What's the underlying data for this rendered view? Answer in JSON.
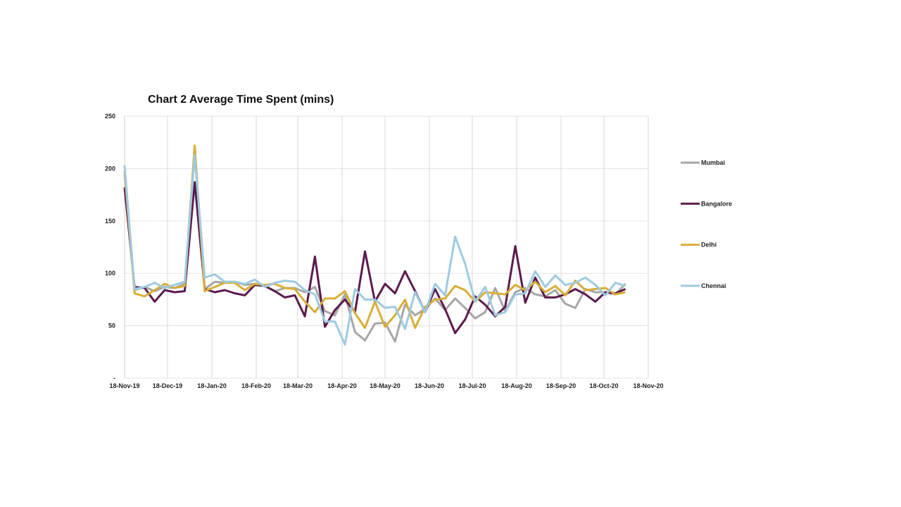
{
  "chart_data": {
    "type": "line",
    "title": "Chart 2 Average Time Spent (mins)",
    "xlabel": "",
    "ylabel": "",
    "ylim": [
      0,
      250
    ],
    "yticks": [
      0,
      50,
      100,
      150,
      200,
      250
    ],
    "ytick_labels": [
      "-",
      "50",
      "100",
      "150",
      "200",
      "250"
    ],
    "xlim": [
      "2019-11-18",
      "2020-11-18"
    ],
    "xticks": [
      "2019-11-18",
      "2019-12-18",
      "2020-01-18",
      "2020-02-18",
      "2020-03-18",
      "2020-04-18",
      "2020-05-18",
      "2020-06-18",
      "2020-07-18",
      "2020-08-18",
      "2020-09-18",
      "2020-10-18",
      "2020-11-18"
    ],
    "xtick_labels": [
      "18-Nov-19",
      "18-Dec-19",
      "18-Jan-20",
      "18-Feb-20",
      "18-Mar-20",
      "18-Apr-20",
      "18-May-20",
      "18-Jun-20",
      "18-Jul-20",
      "18-Aug-20",
      "18-Sep-20",
      "18-Oct-20",
      "18-Nov-20"
    ],
    "grid": true,
    "legend_position": "right",
    "x": [
      "2019-11-18",
      "2019-11-25",
      "2019-12-02",
      "2019-12-09",
      "2019-12-16",
      "2019-12-23",
      "2019-12-30",
      "2020-01-06",
      "2020-01-13",
      "2020-01-20",
      "2020-01-27",
      "2020-02-03",
      "2020-02-10",
      "2020-02-17",
      "2020-02-24",
      "2020-03-02",
      "2020-03-09",
      "2020-03-16",
      "2020-03-23",
      "2020-03-30",
      "2020-04-06",
      "2020-04-13",
      "2020-04-20",
      "2020-04-27",
      "2020-05-04",
      "2020-05-11",
      "2020-05-18",
      "2020-05-25",
      "2020-06-01",
      "2020-06-08",
      "2020-06-15",
      "2020-06-22",
      "2020-06-29",
      "2020-07-06",
      "2020-07-13",
      "2020-07-20",
      "2020-07-27",
      "2020-08-03",
      "2020-08-10",
      "2020-08-17",
      "2020-08-24",
      "2020-08-31",
      "2020-09-07",
      "2020-09-14",
      "2020-09-21",
      "2020-09-28",
      "2020-10-05",
      "2020-10-12",
      "2020-10-19",
      "2020-10-26",
      "2020-11-02"
    ],
    "series": [
      {
        "name": "Mumbai",
        "color": "#a6a6a6",
        "values": [
          195,
          84,
          87,
          83,
          87,
          86,
          90,
          215,
          85,
          92,
          91,
          92,
          89,
          90,
          88,
          83,
          86,
          86,
          82,
          87,
          64,
          60,
          80,
          44,
          36,
          52,
          53,
          35,
          70,
          60,
          66,
          76,
          65,
          76,
          67,
          57,
          63,
          86,
          64,
          82,
          86,
          80,
          78,
          84,
          71,
          67,
          85,
          82,
          82,
          80,
          90
        ]
      },
      {
        "name": "Bangalore",
        "color": "#5b1a4e",
        "values": [
          182,
          87,
          86,
          73,
          84,
          82,
          83,
          187,
          85,
          82,
          84,
          81,
          79,
          89,
          88,
          83,
          77,
          79,
          59,
          116,
          49,
          65,
          75,
          63,
          121,
          73,
          90,
          81,
          102,
          83,
          63,
          85,
          66,
          43,
          56,
          78,
          70,
          59,
          68,
          126,
          72,
          96,
          77,
          77,
          80,
          85,
          80,
          73,
          82,
          81,
          85
        ]
      },
      {
        "name": "Delhi",
        "color": "#d9ad37",
        "values": [
          198,
          81,
          78,
          84,
          90,
          86,
          88,
          222,
          83,
          87,
          91,
          91,
          84,
          90,
          89,
          90,
          86,
          85,
          73,
          63,
          76,
          76,
          83,
          62,
          48,
          73,
          49,
          60,
          75,
          48,
          68,
          75,
          76,
          88,
          84,
          73,
          82,
          81,
          80,
          89,
          84,
          92,
          82,
          88,
          79,
          93,
          84,
          85,
          86,
          80,
          82
        ]
      },
      {
        "name": "Chennai",
        "color": "#9ecae1",
        "values": [
          203,
          85,
          87,
          91,
          86,
          89,
          92,
          213,
          96,
          99,
          92,
          92,
          90,
          94,
          87,
          91,
          93,
          92,
          84,
          80,
          54,
          54,
          32,
          85,
          75,
          75,
          67,
          68,
          47,
          82,
          63,
          90,
          79,
          135,
          109,
          73,
          87,
          60,
          63,
          80,
          81,
          102,
          87,
          98,
          89,
          91,
          96,
          89,
          79,
          91,
          88
        ]
      }
    ]
  }
}
